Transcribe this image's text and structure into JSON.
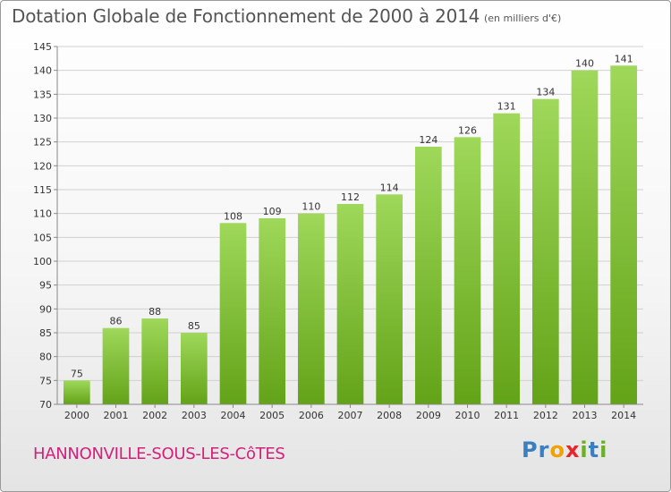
{
  "title": "Dotation Globale de Fonctionnement de 2000 à 2014",
  "subtitle": "(en milliers d'€)",
  "commune": "HANNONVILLE-SOUS-LES-CôTES",
  "logo": {
    "letters": [
      {
        "ch": "P",
        "color": "#3a7fc1"
      },
      {
        "ch": "r",
        "color": "#3a7fc1"
      },
      {
        "ch": "o",
        "color": "#f2a100"
      },
      {
        "ch": "x",
        "color": "#e8262a"
      },
      {
        "ch": "i",
        "color": "#6ab023"
      },
      {
        "ch": "t",
        "color": "#3a7fc1"
      },
      {
        "ch": "i",
        "color": "#6ab023"
      }
    ]
  },
  "colors": {
    "bar_light": "#9fd85a",
    "bar_dark": "#63a318",
    "grid": "#d0d0d0",
    "axis": "#888888",
    "title": "#555555",
    "commune": "#d4207a"
  },
  "chart_data": {
    "type": "bar",
    "title": "Dotation Globale de Fonctionnement de 2000 à 2014",
    "subtitle": "(en milliers d'€)",
    "xlabel": "",
    "ylabel": "",
    "categories": [
      "2000",
      "2001",
      "2002",
      "2003",
      "2004",
      "2005",
      "2006",
      "2007",
      "2008",
      "2009",
      "2010",
      "2011",
      "2012",
      "2013",
      "2014"
    ],
    "values": [
      75,
      86,
      88,
      85,
      108,
      109,
      110,
      112,
      114,
      124,
      126,
      131,
      134,
      140,
      141
    ],
    "ylim": [
      70,
      145
    ],
    "yticks": [
      70,
      75,
      80,
      85,
      90,
      95,
      100,
      105,
      110,
      115,
      120,
      125,
      130,
      135,
      140,
      145
    ],
    "grid": true,
    "data_labels": true
  }
}
